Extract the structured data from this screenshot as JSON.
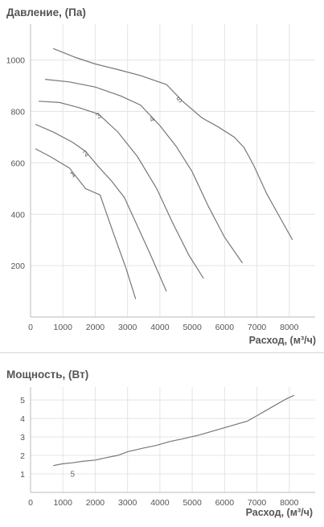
{
  "charts": {
    "pressure": {
      "title": "Давление, (Па)",
      "xlabel": "Расход, (м³/ч)"
    },
    "power": {
      "title": "Мощность, (Вт)",
      "xlabel": "Расход, (м³/ч)"
    }
  },
  "colors": {
    "line": "#777777",
    "grid": "#e4e4e4",
    "axis": "#bbbbbb"
  },
  "chart_data": [
    {
      "type": "line",
      "title": "Давление, (Па)",
      "xlabel": "Расход, (м³/ч)",
      "ylabel": "",
      "xlim": [
        0,
        8800
      ],
      "ylim": [
        0,
        1140
      ],
      "xticks": [
        "0",
        "1000",
        "2000",
        "3000",
        "4000",
        "5000",
        "6000",
        "7000",
        "8000"
      ],
      "yticks": [
        "200",
        "400",
        "600",
        "800",
        "1000"
      ],
      "grid": true,
      "series": [
        {
          "name": "1",
          "x": [
            150,
            600,
            1200,
            1700,
            2150,
            2550,
            2950,
            3250
          ],
          "y": [
            655,
            625,
            580,
            500,
            475,
            330,
            190,
            70
          ]
        },
        {
          "name": "2",
          "x": [
            150,
            700,
            1300,
            1700,
            2100,
            2500,
            2900,
            3300,
            3700,
            4200
          ],
          "y": [
            750,
            720,
            680,
            645,
            585,
            530,
            465,
            355,
            245,
            100
          ]
        },
        {
          "name": "3",
          "x": [
            250,
            900,
            1500,
            2100,
            2700,
            3300,
            3900,
            4400,
            4900,
            5350
          ],
          "y": [
            840,
            835,
            815,
            790,
            720,
            625,
            500,
            365,
            240,
            150
          ]
        },
        {
          "name": "4",
          "x": [
            450,
            1200,
            2000,
            2800,
            3400,
            4000,
            4500,
            5000,
            5500,
            6000,
            6550
          ],
          "y": [
            925,
            915,
            895,
            860,
            825,
            745,
            665,
            565,
            430,
            310,
            210
          ]
        },
        {
          "name": "5",
          "x": [
            700,
            1400,
            2000,
            2800,
            3400,
            4200,
            4700,
            5300,
            5800,
            6300,
            6600,
            6900,
            7300,
            7700,
            8100
          ],
          "y": [
            1045,
            1010,
            985,
            960,
            940,
            905,
            840,
            775,
            740,
            700,
            660,
            590,
            480,
            390,
            300
          ]
        }
      ]
    },
    {
      "type": "line",
      "title": "Мощность, (Вт)",
      "xlabel": "Расход, (м³/ч)",
      "ylabel": "",
      "xlim": [
        0,
        8800
      ],
      "ylim": [
        0,
        5.7
      ],
      "xticks": [
        "0",
        "1000",
        "2000",
        "3000",
        "4000",
        "5000",
        "6000",
        "7000",
        "8000"
      ],
      "yticks": [
        "1",
        "2",
        "3",
        "4",
        "5"
      ],
      "grid": true,
      "series": [
        {
          "name": "5",
          "x": [
            700,
            1000,
            1300,
            1600,
            2000,
            2400,
            2700,
            3000,
            3500,
            3900,
            4300,
            4700,
            5200,
            5600,
            6000,
            6300,
            6700,
            7000,
            7300,
            7600,
            7900,
            8150
          ],
          "y": [
            1.45,
            1.55,
            1.6,
            1.68,
            1.75,
            1.9,
            2.0,
            2.2,
            2.4,
            2.55,
            2.75,
            2.9,
            3.1,
            3.3,
            3.5,
            3.65,
            3.85,
            4.15,
            4.45,
            4.75,
            5.05,
            5.25
          ]
        }
      ]
    }
  ]
}
